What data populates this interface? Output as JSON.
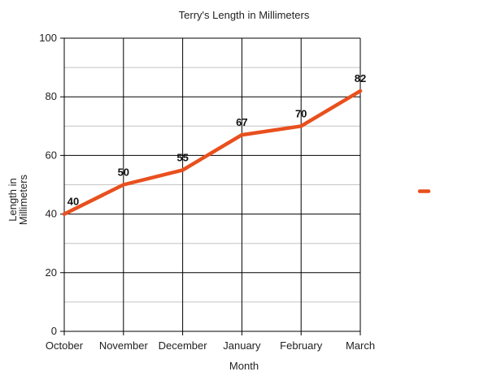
{
  "chart_data": {
    "type": "line",
    "title": "Terry's Length in Millimeters",
    "xlabel": "Month",
    "ylabel_lines": [
      "Length in",
      "Millimeters"
    ],
    "categories": [
      "October",
      "November",
      "December",
      "January",
      "February",
      "March"
    ],
    "series": [
      {
        "values": [
          40,
          50,
          55,
          67,
          70,
          82
        ],
        "color": "#e8501e"
      }
    ],
    "ylim": [
      0,
      100
    ],
    "yticks": [
      0,
      20,
      40,
      60,
      80,
      100
    ],
    "grid": true,
    "legend": "right"
  }
}
